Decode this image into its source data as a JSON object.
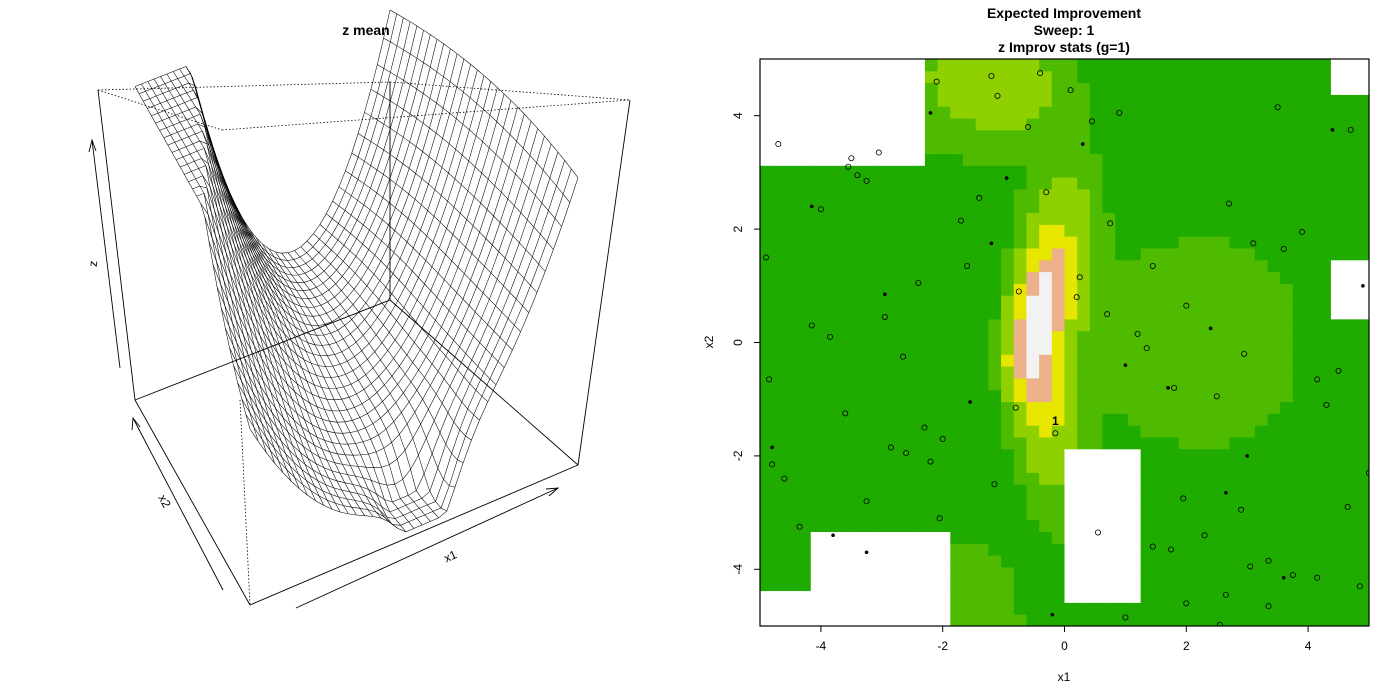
{
  "chart_data": [
    {
      "type": "surface",
      "title": "z mean",
      "xlabel": "x1",
      "ylabel": "x2",
      "zlabel": "z",
      "x_range": [
        -5,
        5
      ],
      "y_range": [
        -5,
        5
      ],
      "grid_mesh": true
    },
    {
      "type": "heatmap",
      "title_lines": [
        "Expected Improvement",
        "Sweep: 1",
        "z Improv stats (g=1)"
      ],
      "xlabel": "x1",
      "ylabel": "x2",
      "xlim": [
        -5,
        5
      ],
      "ylim": [
        -5,
        5
      ],
      "x_ticks": [
        -4,
        -2,
        0,
        2,
        4
      ],
      "y_ticks": [
        -4,
        -2,
        0,
        2,
        4
      ],
      "colors": {
        "low": "#1fab00",
        "mid": "#8fd000",
        "high": "#e6e600",
        "peak": "#ecb18b",
        "top": "#f2f2f2"
      },
      "marker_label": "1",
      "marker_point": {
        "x": -0.15,
        "y": -1.6
      },
      "filled_points": [
        {
          "x": -2.2,
          "y": 4.05
        },
        {
          "x": 0.3,
          "y": 3.5
        },
        {
          "x": 4.4,
          "y": 3.75
        },
        {
          "x": -4.15,
          "y": 2.4
        },
        {
          "x": -0.95,
          "y": 2.9
        },
        {
          "x": -1.2,
          "y": 1.75
        },
        {
          "x": -2.95,
          "y": 0.85
        },
        {
          "x": 2.4,
          "y": 0.25
        },
        {
          "x": 4.9,
          "y": 1.0
        },
        {
          "x": 1.0,
          "y": -0.4
        },
        {
          "x": 1.7,
          "y": -0.8
        },
        {
          "x": -1.55,
          "y": -1.05
        },
        {
          "x": -4.8,
          "y": -1.85
        },
        {
          "x": 3.0,
          "y": -2.0
        },
        {
          "x": 2.65,
          "y": -2.65
        },
        {
          "x": -3.8,
          "y": -3.4
        },
        {
          "x": -3.25,
          "y": -3.7
        },
        {
          "x": 3.6,
          "y": -4.15
        },
        {
          "x": -0.2,
          "y": -4.8
        }
      ],
      "open_points": [
        {
          "x": -2.1,
          "y": 4.6
        },
        {
          "x": -1.2,
          "y": 4.7
        },
        {
          "x": -0.4,
          "y": 4.75
        },
        {
          "x": 0.1,
          "y": 4.45
        },
        {
          "x": -1.1,
          "y": 4.35
        },
        {
          "x": 3.5,
          "y": 4.15
        },
        {
          "x": -0.6,
          "y": 3.8
        },
        {
          "x": 0.45,
          "y": 3.9
        },
        {
          "x": 0.9,
          "y": 4.05
        },
        {
          "x": 4.7,
          "y": 3.75
        },
        {
          "x": -4.7,
          "y": 3.5
        },
        {
          "x": -3.05,
          "y": 3.35
        },
        {
          "x": -3.55,
          "y": 3.1
        },
        {
          "x": -3.4,
          "y": 2.95
        },
        {
          "x": -3.25,
          "y": 2.85
        },
        {
          "x": -3.5,
          "y": 3.25
        },
        {
          "x": -0.3,
          "y": 2.65
        },
        {
          "x": -1.4,
          "y": 2.55
        },
        {
          "x": -4.0,
          "y": 2.35
        },
        {
          "x": 2.7,
          "y": 2.45
        },
        {
          "x": 0.75,
          "y": 2.1
        },
        {
          "x": -1.7,
          "y": 2.15
        },
        {
          "x": 3.9,
          "y": 1.95
        },
        {
          "x": 3.1,
          "y": 1.75
        },
        {
          "x": 3.6,
          "y": 1.65
        },
        {
          "x": -4.9,
          "y": 1.5
        },
        {
          "x": 1.45,
          "y": 1.35
        },
        {
          "x": -1.6,
          "y": 1.35
        },
        {
          "x": 0.25,
          "y": 1.15
        },
        {
          "x": -2.4,
          "y": 1.05
        },
        {
          "x": -0.75,
          "y": 0.9
        },
        {
          "x": 0.2,
          "y": 0.8
        },
        {
          "x": 2.0,
          "y": 0.65
        },
        {
          "x": 0.7,
          "y": 0.5
        },
        {
          "x": -2.95,
          "y": 0.45
        },
        {
          "x": -4.15,
          "y": 0.3
        },
        {
          "x": 1.2,
          "y": 0.15
        },
        {
          "x": -3.85,
          "y": 0.1
        },
        {
          "x": 1.35,
          "y": -0.1
        },
        {
          "x": 2.95,
          "y": -0.2
        },
        {
          "x": -2.65,
          "y": -0.25
        },
        {
          "x": 4.5,
          "y": -0.5
        },
        {
          "x": 4.15,
          "y": -0.65
        },
        {
          "x": -4.85,
          "y": -0.65
        },
        {
          "x": 1.8,
          "y": -0.8
        },
        {
          "x": 2.5,
          "y": -0.95
        },
        {
          "x": 4.3,
          "y": -1.1
        },
        {
          "x": -0.8,
          "y": -1.15
        },
        {
          "x": -3.6,
          "y": -1.25
        },
        {
          "x": -2.3,
          "y": -1.5
        },
        {
          "x": -0.15,
          "y": -1.6
        },
        {
          "x": -2.0,
          "y": -1.7
        },
        {
          "x": -2.85,
          "y": -1.85
        },
        {
          "x": -2.6,
          "y": -1.95
        },
        {
          "x": -4.8,
          "y": -2.15
        },
        {
          "x": -2.2,
          "y": -2.1
        },
        {
          "x": 5.0,
          "y": -2.3
        },
        {
          "x": -4.6,
          "y": -2.4
        },
        {
          "x": -1.15,
          "y": -2.5
        },
        {
          "x": 1.95,
          "y": -2.75
        },
        {
          "x": -3.25,
          "y": -2.8
        },
        {
          "x": 2.9,
          "y": -2.95
        },
        {
          "x": 4.65,
          "y": -2.9
        },
        {
          "x": -2.05,
          "y": -3.1
        },
        {
          "x": -4.35,
          "y": -3.25
        },
        {
          "x": 0.55,
          "y": -3.35
        },
        {
          "x": 2.3,
          "y": -3.4
        },
        {
          "x": 1.45,
          "y": -3.6
        },
        {
          "x": 1.75,
          "y": -3.65
        },
        {
          "x": 3.35,
          "y": -3.85
        },
        {
          "x": 3.05,
          "y": -3.95
        },
        {
          "x": 3.75,
          "y": -4.1
        },
        {
          "x": 4.15,
          "y": -4.15
        },
        {
          "x": 4.85,
          "y": -4.3
        },
        {
          "x": 2.65,
          "y": -4.45
        },
        {
          "x": 2.0,
          "y": -4.6
        },
        {
          "x": 3.35,
          "y": -4.65
        },
        {
          "x": 1.0,
          "y": -4.85
        },
        {
          "x": 2.55,
          "y": -4.98
        }
      ]
    }
  ]
}
